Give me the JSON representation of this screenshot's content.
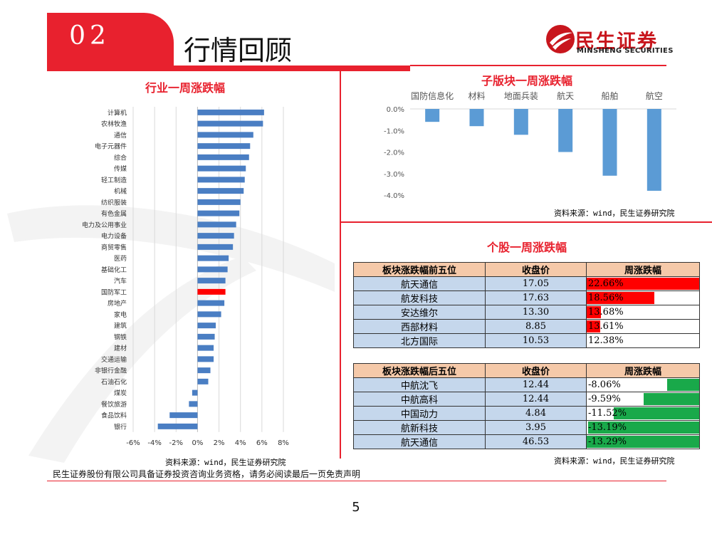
{
  "header": {
    "section_number": "02",
    "title": "行情回顾"
  },
  "logo": {
    "name_cn": "民生证券",
    "name_en": "MINSHENG SECURITIES"
  },
  "colors": {
    "brand_red": "#e8212e",
    "bar_blue": "#4a7ec3",
    "highlight_red": "#ff0000",
    "sub_blue": "#5b9bd5",
    "up_red": "#ff0000",
    "down_green": "#19a94a",
    "table_header": "#f5c9a9",
    "table_cell": "#c5d7ec"
  },
  "chart_data": [
    {
      "id": "industry_weekly",
      "type": "bar",
      "orientation": "horizontal",
      "title": "行业一周涨跌幅",
      "categories": [
        "计算机",
        "农林牧渔",
        "通信",
        "电子元器件",
        "综合",
        "传媒",
        "轻工制造",
        "机械",
        "纺织服装",
        "有色金属",
        "电力及公用事业",
        "电力设备",
        "商贸零售",
        "医药",
        "基础化工",
        "汽车",
        "国防军工",
        "房地产",
        "家电",
        "建筑",
        "钢铁",
        "建材",
        "交通运输",
        "非银行金融",
        "石油石化",
        "煤炭",
        "餐饮旅游",
        "食品饮料",
        "银行"
      ],
      "values": [
        6.2,
        6.1,
        5.2,
        4.9,
        4.8,
        4.5,
        4.4,
        4.3,
        4.0,
        3.9,
        3.6,
        3.4,
        3.3,
        2.9,
        2.8,
        2.6,
        2.6,
        2.5,
        2.2,
        1.7,
        1.6,
        1.5,
        1.5,
        1.2,
        1.0,
        -0.5,
        -0.8,
        -2.6,
        -3.7
      ],
      "highlight": "国防军工",
      "xlim": [
        -6,
        8
      ],
      "xticks": [
        "-6%",
        "-4%",
        "-2%",
        "0%",
        "2%",
        "4%",
        "6%",
        "8%"
      ],
      "source": "资料来源：wind，民生证券研究院"
    },
    {
      "id": "sub_sector_weekly",
      "type": "bar",
      "title": "子版块一周涨跌幅",
      "categories": [
        "国防信息化",
        "材料",
        "地面兵装",
        "航天",
        "船舶",
        "航空"
      ],
      "values": [
        -0.6,
        -0.8,
        -1.2,
        -2.0,
        -3.1,
        -3.8
      ],
      "ylim": [
        -4,
        0
      ],
      "yticks": [
        "0.0%",
        "-1.0%",
        "-2.0%",
        "-3.0%",
        "-4.0%"
      ],
      "source": "资料来源：wind，民生证券研究院"
    }
  ],
  "stocks": {
    "title": "个股一周涨跌幅",
    "top": {
      "headers": [
        "板块涨跌幅前五位",
        "收盘价",
        "周涨跌幅"
      ],
      "rows": [
        {
          "name": "航天通信",
          "close": "17.05",
          "change": "22.66%",
          "value": 22.66
        },
        {
          "name": "航发科技",
          "close": "17.63",
          "change": "18.56%",
          "value": 18.56
        },
        {
          "name": "安达维尔",
          "close": "13.30",
          "change": "13.68%",
          "value": 13.68
        },
        {
          "name": "西部材料",
          "close": "8.85",
          "change": "13.61%",
          "value": 13.61
        },
        {
          "name": "北方国际",
          "close": "10.53",
          "change": "12.38%",
          "value": 12.38
        }
      ]
    },
    "bottom": {
      "headers": [
        "板块涨跌幅后五位",
        "收盘价",
        "周涨跌幅"
      ],
      "rows": [
        {
          "name": "中航沈飞",
          "close": "12.44",
          "change": "-8.06%",
          "value": -8.06
        },
        {
          "name": "中航高科",
          "close": "12.44",
          "change": "-9.59%",
          "value": -9.59
        },
        {
          "name": "中国动力",
          "close": "4.84",
          "change": "-11.52%",
          "value": -11.52
        },
        {
          "name": "航新科技",
          "close": "3.95",
          "change": "-13.19%",
          "value": -13.19
        },
        {
          "name": "航天通信",
          "close": "46.53",
          "change": "-13.29%",
          "value": -13.29
        }
      ]
    },
    "source": "资料来源：wind，民生证券研究院"
  },
  "footer": {
    "disclaimer": "民生证券股份有限公司具备证券投资咨询业务资格，请务必阅读最后一页免责声明",
    "page_number": "5"
  }
}
